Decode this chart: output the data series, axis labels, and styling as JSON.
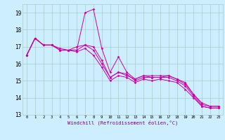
{
  "xlabel": "Windchill (Refroidissement éolien,°C)",
  "ylabel": "",
  "background_color": "#cceeff",
  "grid_color": "#aacccc",
  "line_color": "#cc00aa",
  "xlim": [
    -0.5,
    23.5
  ],
  "ylim": [
    13,
    19.5
  ],
  "yticks": [
    13,
    14,
    15,
    16,
    17,
    18,
    19
  ],
  "xticks": [
    0,
    1,
    2,
    3,
    4,
    5,
    6,
    7,
    8,
    9,
    10,
    11,
    12,
    13,
    14,
    15,
    16,
    17,
    18,
    19,
    20,
    21,
    22,
    23
  ],
  "series": [
    [
      16.5,
      17.5,
      17.1,
      17.1,
      16.9,
      16.8,
      16.8,
      19.0,
      19.2,
      16.9,
      15.5,
      16.4,
      15.5,
      15.1,
      15.3,
      15.3,
      15.3,
      15.3,
      15.1,
      14.9,
      14.2,
      13.7,
      13.5,
      13.5
    ],
    [
      16.5,
      17.5,
      17.1,
      17.1,
      16.8,
      16.8,
      17.0,
      17.1,
      16.8,
      16.0,
      15.2,
      15.5,
      15.3,
      15.1,
      15.3,
      15.2,
      15.2,
      15.3,
      15.1,
      14.8,
      14.2,
      13.6,
      13.5,
      13.5
    ],
    [
      16.5,
      17.5,
      17.1,
      17.1,
      16.8,
      16.8,
      16.8,
      17.1,
      17.0,
      16.2,
      15.2,
      15.5,
      15.4,
      15.0,
      15.2,
      15.2,
      15.2,
      15.2,
      15.0,
      14.7,
      14.1,
      13.5,
      13.4,
      13.4
    ],
    [
      16.5,
      17.5,
      17.1,
      17.1,
      16.8,
      16.8,
      16.7,
      16.9,
      16.5,
      15.8,
      15.0,
      15.3,
      15.2,
      14.9,
      15.1,
      15.0,
      15.1,
      15.0,
      14.9,
      14.5,
      14.0,
      13.5,
      13.4,
      13.4
    ]
  ]
}
